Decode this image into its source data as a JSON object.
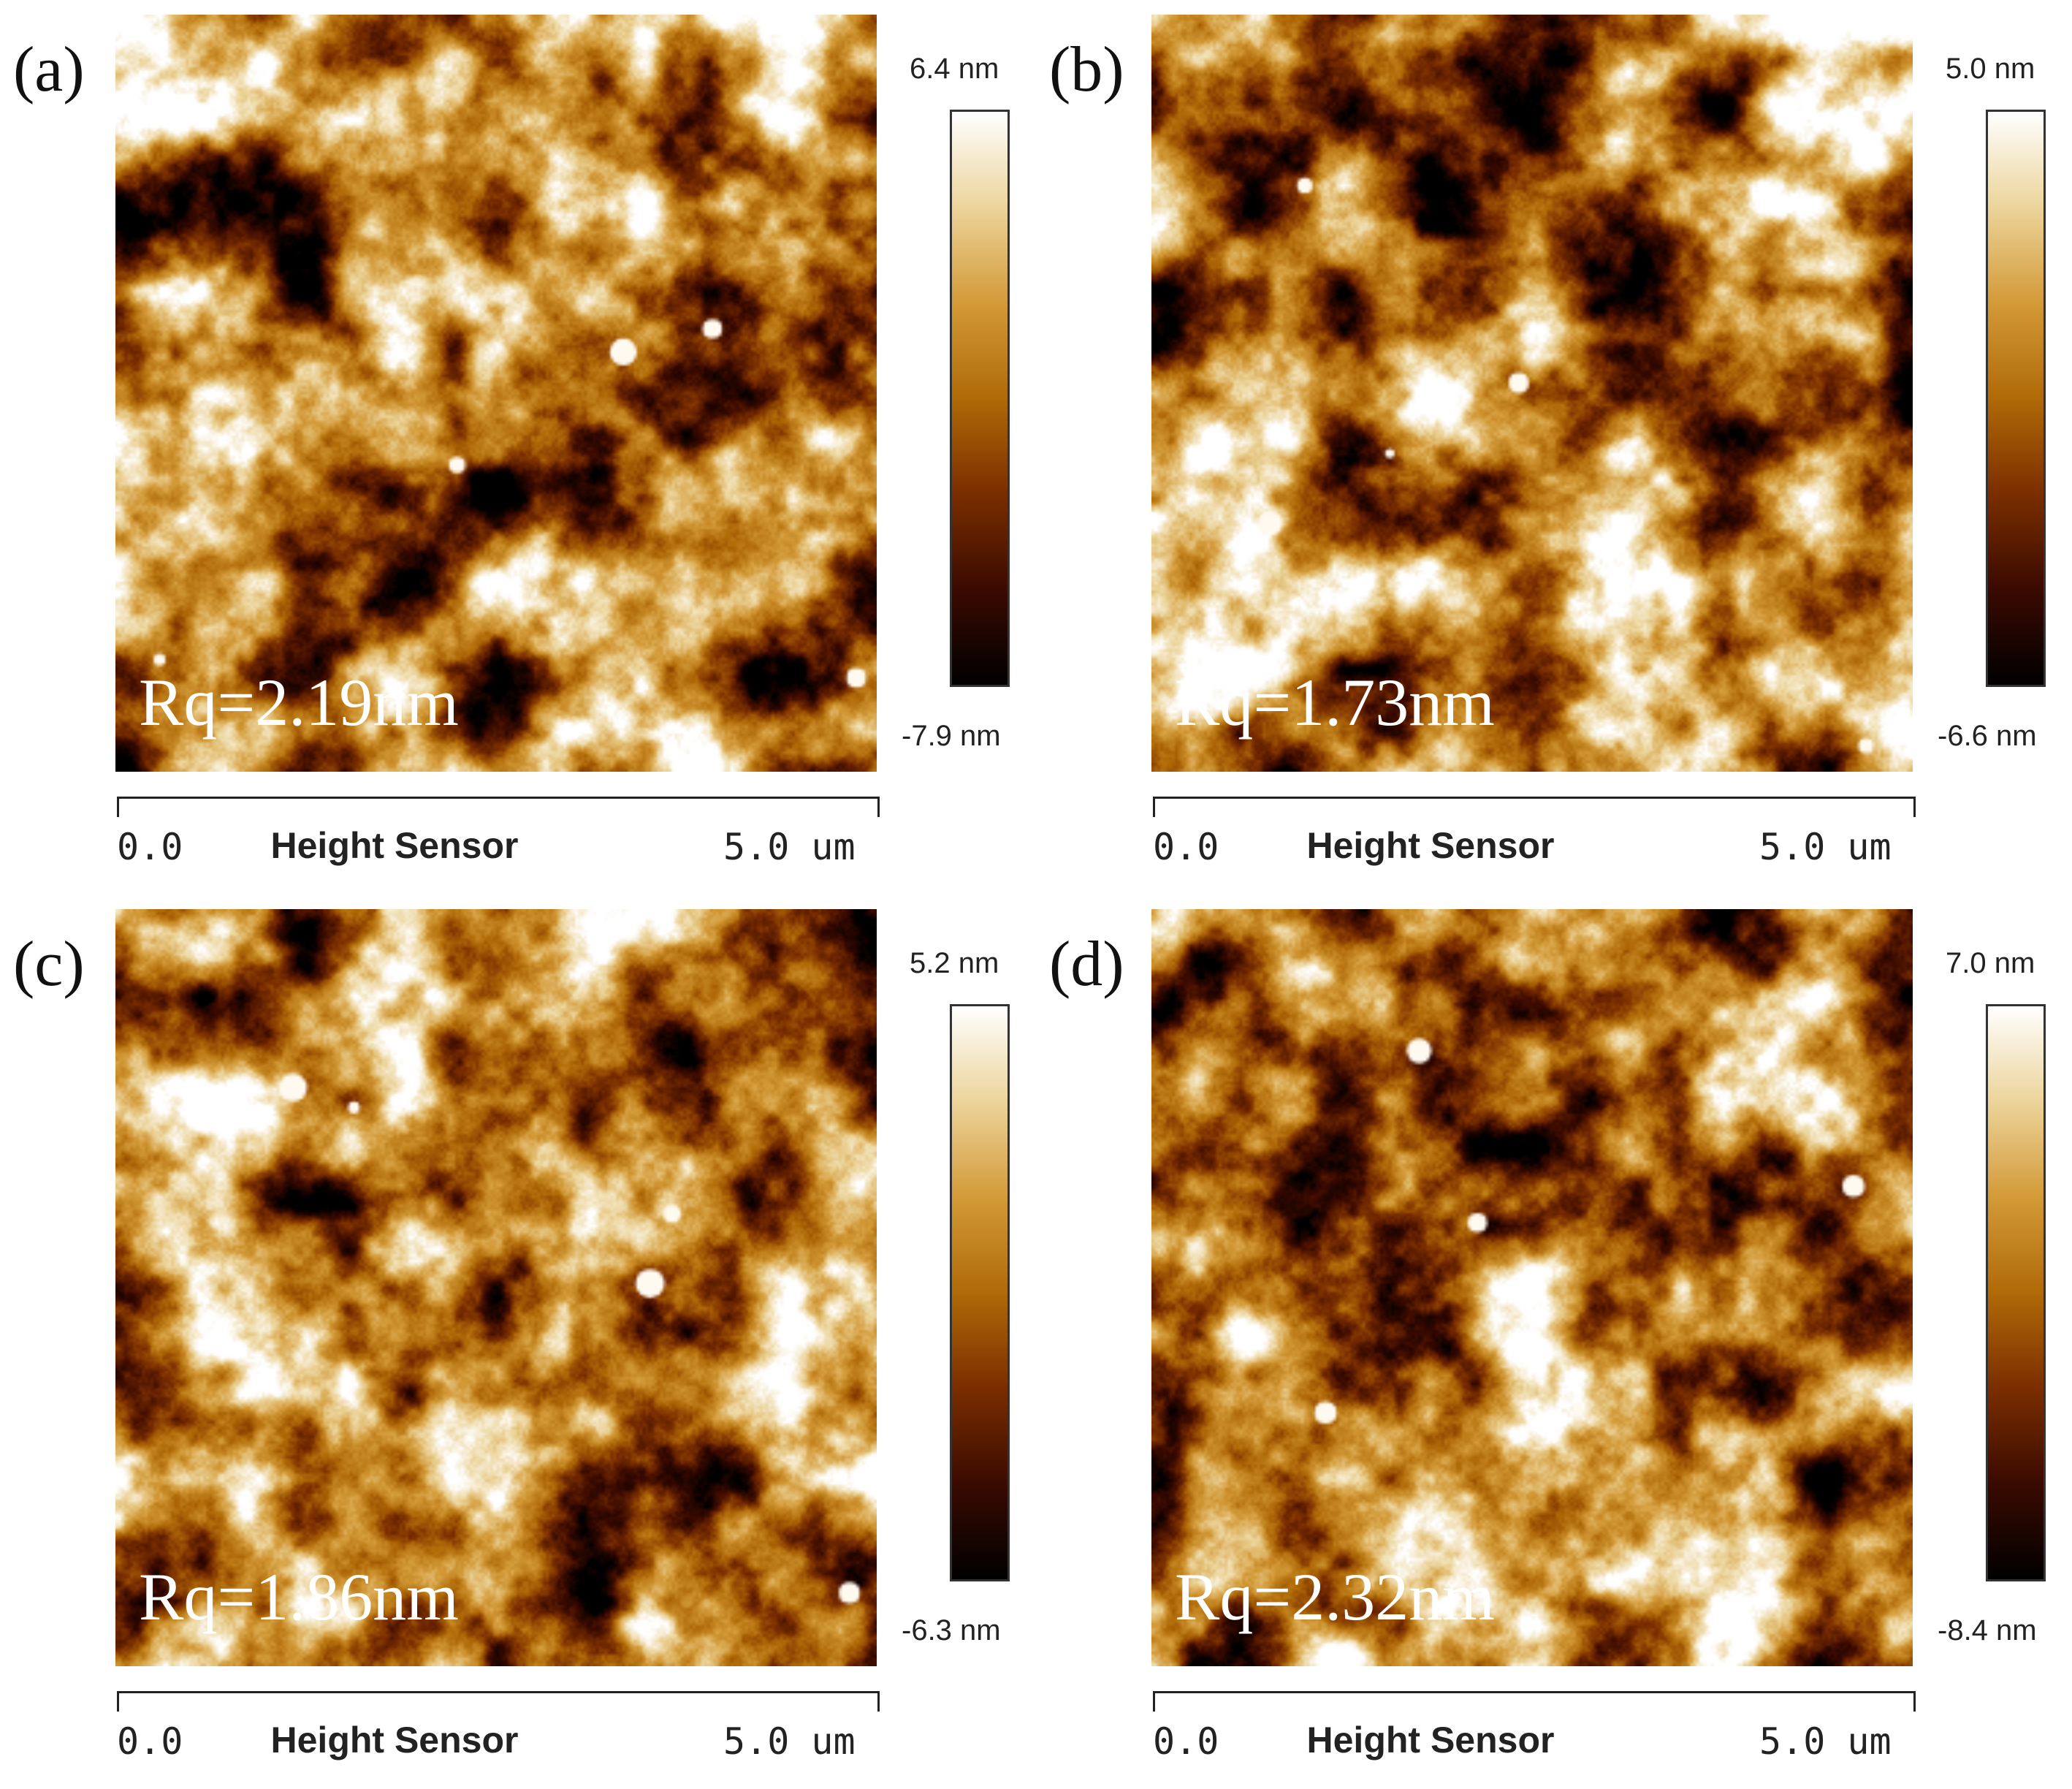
{
  "colormap": [
    "#000000",
    "#3a0a00",
    "#7a2e00",
    "#b06a08",
    "#d39a38",
    "#ecd49b",
    "#ffffff"
  ],
  "panels": [
    {
      "label": "(a)",
      "rq": "Rq=2.19nm",
      "scale_max": "6.4 nm",
      "scale_min": "-7.9 nm",
      "axis_start": "0.0",
      "axis_name": "Height Sensor",
      "axis_end": "5.0 um",
      "seed": 11
    },
    {
      "label": "(b)",
      "rq": "Rq=1.73nm",
      "scale_max": "5.0 nm",
      "scale_min": "-6.6 nm",
      "axis_start": "0.0",
      "axis_name": "Height Sensor",
      "axis_end": "5.0 um",
      "seed": 23
    },
    {
      "label": "(c)",
      "rq": "Rq=1.86nm",
      "scale_max": "5.2 nm",
      "scale_min": "-6.3 nm",
      "axis_start": "0.0",
      "axis_name": "Height Sensor",
      "axis_end": "5.0 um",
      "seed": 37
    },
    {
      "label": "(d)",
      "rq": "Rq=2.32nm",
      "scale_max": "7.0 nm",
      "scale_min": "-8.4 nm",
      "axis_start": "0.0",
      "axis_name": "Height Sensor",
      "axis_end": "5.0 um",
      "seed": 53
    }
  ]
}
